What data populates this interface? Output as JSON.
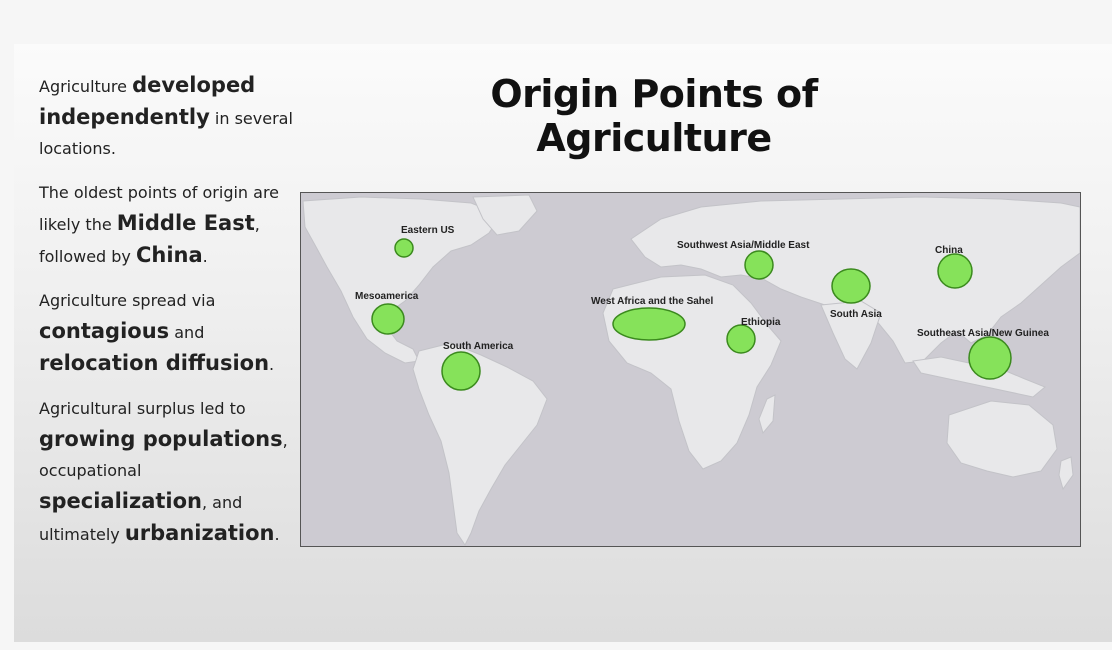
{
  "slide": {
    "title": "Origin Points of Agriculture"
  },
  "bullets": [
    [
      {
        "text": "Agriculture ",
        "bold": false
      },
      {
        "text": "developed independently",
        "bold": true
      },
      {
        "text": " in several locations.",
        "bold": false
      }
    ],
    [
      {
        "text": "The oldest points of origin are likely the ",
        "bold": false
      },
      {
        "text": "Middle East",
        "bold": true
      },
      {
        "text": ", followed by ",
        "bold": false
      },
      {
        "text": "China",
        "bold": true
      },
      {
        "text": ".",
        "bold": false
      }
    ],
    [
      {
        "text": "Agriculture spread via ",
        "bold": false
      },
      {
        "text": "contagious",
        "bold": true
      },
      {
        "text": " and ",
        "bold": false
      },
      {
        "text": "relocation diffusion",
        "bold": true
      },
      {
        "text": ".",
        "bold": false
      }
    ],
    [
      {
        "text": "Agricultural surplus led to ",
        "bold": false
      },
      {
        "text": "growing populations",
        "bold": true
      },
      {
        "text": ", occupational ",
        "bold": false
      },
      {
        "text": "specialization",
        "bold": true
      },
      {
        "text": ", and ultimately ",
        "bold": false
      },
      {
        "text": "urbanization",
        "bold": true
      },
      {
        "text": ".",
        "bold": false
      }
    ]
  ],
  "map": {
    "water_color": "#cdcbd2",
    "land_color": "#e8e8ea",
    "region_color": "#86e25a",
    "regions": [
      {
        "key": "eastern-us",
        "label": "Eastern US"
      },
      {
        "key": "mesoamerica",
        "label": "Mesoamerica"
      },
      {
        "key": "south-america",
        "label": "South America"
      },
      {
        "key": "west-africa-sahel",
        "label": "West Africa and the Sahel"
      },
      {
        "key": "ethiopia",
        "label": "Ethiopia"
      },
      {
        "key": "southwest-asia-middle-east",
        "label": "Southwest Asia/Middle East"
      },
      {
        "key": "south-asia",
        "label": "South Asia"
      },
      {
        "key": "china",
        "label": "China"
      },
      {
        "key": "southeast-asia-new-guinea",
        "label": "Southeast Asia/New Guinea"
      }
    ]
  }
}
